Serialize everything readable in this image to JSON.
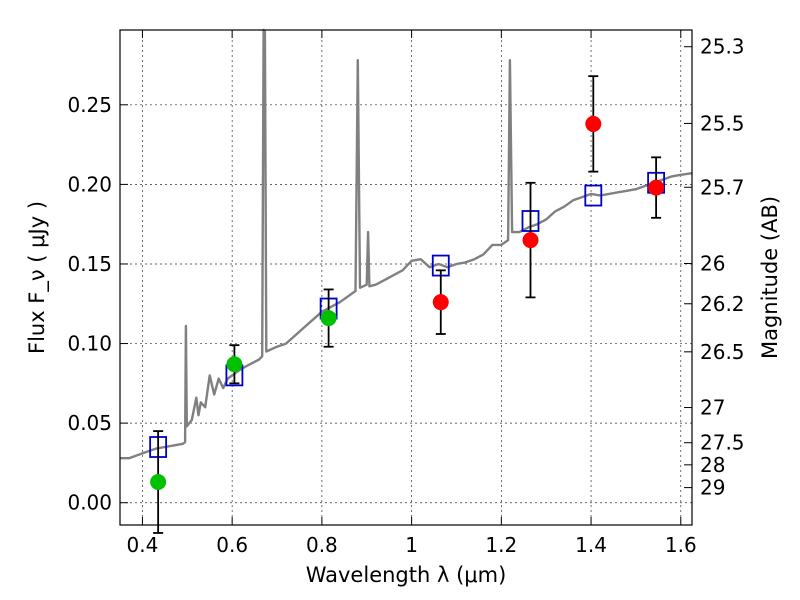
{
  "chart_data": {
    "type": "scatter",
    "xlabel": "Wavelength  λ (μm)",
    "ylabel_left": "Flux  F_ν  ( μJy )",
    "ylabel_right": "Magnitude (AB)",
    "xlim": [
      0.35,
      1.625
    ],
    "ylim": [
      -0.014,
      0.297
    ],
    "grid": true,
    "x_ticks": [
      0.4,
      0.6,
      0.8,
      1.0,
      1.2,
      1.4,
      1.6
    ],
    "x_tick_labels": [
      "0.4",
      "0.6",
      "0.8",
      "1",
      "1.2",
      "1.4",
      "1.6"
    ],
    "y_ticks": [
      0.0,
      0.05,
      0.1,
      0.15,
      0.2,
      0.25
    ],
    "y_tick_labels": [
      "0.00",
      "0.05",
      "0.10",
      "0.15",
      "0.20",
      "0.25"
    ],
    "right_ticks": [
      {
        "label": "25.3",
        "flux": 0.2865
      },
      {
        "label": "25.5",
        "flux": 0.2383
      },
      {
        "label": "25.7",
        "flux": 0.1982
      },
      {
        "label": "26",
        "flux": 0.1503
      },
      {
        "label": "26.2",
        "flux": 0.125
      },
      {
        "label": "26.5",
        "flux": 0.0948
      },
      {
        "label": "27",
        "flux": 0.0598
      },
      {
        "label": "27.5",
        "flux": 0.0377
      },
      {
        "label": "28",
        "flux": 0.0238
      },
      {
        "label": "29",
        "flux": 0.0095
      }
    ],
    "series": [
      {
        "kind": "spectrum",
        "color": "#808080",
        "points": [
          [
            0.35,
            0.028
          ],
          [
            0.37,
            0.028
          ],
          [
            0.39,
            0.03
          ],
          [
            0.41,
            0.032
          ],
          [
            0.43,
            0.034
          ],
          [
            0.45,
            0.035
          ],
          [
            0.47,
            0.036
          ],
          [
            0.49,
            0.037
          ],
          [
            0.495,
            0.038
          ],
          [
            0.497,
            0.111
          ],
          [
            0.499,
            0.048
          ],
          [
            0.51,
            0.052
          ],
          [
            0.52,
            0.066
          ],
          [
            0.525,
            0.055
          ],
          [
            0.53,
            0.063
          ],
          [
            0.54,
            0.06
          ],
          [
            0.55,
            0.08
          ],
          [
            0.56,
            0.068
          ],
          [
            0.57,
            0.078
          ],
          [
            0.58,
            0.072
          ],
          [
            0.59,
            0.078
          ],
          [
            0.6,
            0.08
          ],
          [
            0.61,
            0.082
          ],
          [
            0.62,
            0.084
          ],
          [
            0.64,
            0.087
          ],
          [
            0.66,
            0.09
          ],
          [
            0.667,
            0.092
          ],
          [
            0.67,
            0.297
          ],
          [
            0.673,
            0.296
          ],
          [
            0.676,
            0.095
          ],
          [
            0.7,
            0.098
          ],
          [
            0.72,
            0.1
          ],
          [
            0.74,
            0.105
          ],
          [
            0.76,
            0.11
          ],
          [
            0.78,
            0.115
          ],
          [
            0.8,
            0.12
          ],
          [
            0.82,
            0.123
          ],
          [
            0.84,
            0.126
          ],
          [
            0.86,
            0.13
          ],
          [
            0.875,
            0.133
          ],
          [
            0.88,
            0.278
          ],
          [
            0.885,
            0.135
          ],
          [
            0.9,
            0.137
          ],
          [
            0.903,
            0.17
          ],
          [
            0.906,
            0.136
          ],
          [
            0.92,
            0.137
          ],
          [
            0.94,
            0.14
          ],
          [
            0.96,
            0.143
          ],
          [
            0.98,
            0.146
          ],
          [
            1.0,
            0.152
          ],
          [
            1.02,
            0.153
          ],
          [
            1.04,
            0.148
          ],
          [
            1.06,
            0.15
          ],
          [
            1.08,
            0.148
          ],
          [
            1.1,
            0.15
          ],
          [
            1.12,
            0.151
          ],
          [
            1.14,
            0.153
          ],
          [
            1.16,
            0.156
          ],
          [
            1.18,
            0.162
          ],
          [
            1.2,
            0.162
          ],
          [
            1.215,
            0.165
          ],
          [
            1.219,
            0.278
          ],
          [
            1.224,
            0.17
          ],
          [
            1.24,
            0.17
          ],
          [
            1.26,
            0.173
          ],
          [
            1.28,
            0.175
          ],
          [
            1.3,
            0.178
          ],
          [
            1.32,
            0.183
          ],
          [
            1.34,
            0.186
          ],
          [
            1.36,
            0.19
          ],
          [
            1.38,
            0.192
          ],
          [
            1.4,
            0.194
          ],
          [
            1.42,
            0.193
          ],
          [
            1.44,
            0.194
          ],
          [
            1.46,
            0.195
          ],
          [
            1.48,
            0.196
          ],
          [
            1.5,
            0.197
          ],
          [
            1.52,
            0.199
          ],
          [
            1.54,
            0.201
          ],
          [
            1.56,
            0.203
          ],
          [
            1.58,
            0.205
          ],
          [
            1.6,
            0.206
          ],
          [
            1.625,
            0.207
          ]
        ]
      },
      {
        "kind": "squares",
        "color": "#0000cc",
        "points": [
          [
            0.435,
            0.035
          ],
          [
            0.605,
            0.08
          ],
          [
            0.815,
            0.122
          ],
          [
            1.065,
            0.149
          ],
          [
            1.265,
            0.177
          ],
          [
            1.405,
            0.193
          ],
          [
            1.545,
            0.201
          ]
        ]
      },
      {
        "kind": "circles",
        "color": "#00c000",
        "points": [
          {
            "x": 0.435,
            "y": 0.013,
            "err": 0.032
          },
          {
            "x": 0.605,
            "y": 0.087,
            "err": 0.012
          },
          {
            "x": 0.815,
            "y": 0.116,
            "err": 0.018
          }
        ]
      },
      {
        "kind": "circles",
        "color": "#ff0000",
        "points": [
          {
            "x": 1.065,
            "y": 0.126,
            "err": 0.02
          },
          {
            "x": 1.265,
            "y": 0.165,
            "err": 0.036
          },
          {
            "x": 1.405,
            "y": 0.238,
            "err": 0.03
          },
          {
            "x": 1.545,
            "y": 0.198,
            "err": 0.019
          }
        ]
      }
    ]
  }
}
